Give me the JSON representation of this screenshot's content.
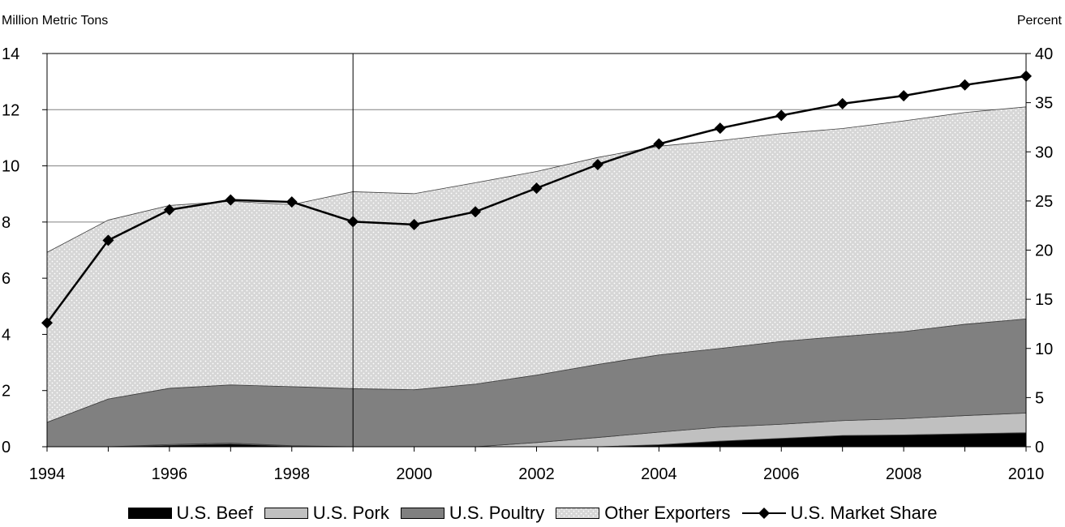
{
  "chart_data": {
    "type": "area",
    "left_axis_label": "Million Metric Tons",
    "right_axis_label": "Percent",
    "x": [
      1994,
      1995,
      1996,
      1997,
      1998,
      1999,
      2000,
      2001,
      2002,
      2003,
      2004,
      2005,
      2006,
      2007,
      2008,
      2009,
      2010
    ],
    "x_ticks": [
      "1994",
      "1996",
      "1998",
      "2000",
      "2002",
      "2004",
      "2006",
      "2008",
      "2010"
    ],
    "y_left_ticks": [
      "0",
      "2",
      "4",
      "6",
      "8",
      "10",
      "12",
      "14"
    ],
    "y_right_ticks": [
      "0",
      "5",
      "10",
      "15",
      "20",
      "25",
      "30",
      "35",
      "40"
    ],
    "ylim_left": [
      0,
      14
    ],
    "ylim_right": [
      0,
      40
    ],
    "series": [
      {
        "name": "U.S. Beef",
        "type": "area",
        "axis": "left",
        "color": "#000000",
        "values": [
          0,
          0,
          0.05,
          0.1,
          0.02,
          0,
          0,
          0,
          0,
          0,
          0.07,
          0.2,
          0.3,
          0.4,
          0.42,
          0.46,
          0.5
        ]
      },
      {
        "name": "U.S. Pork",
        "type": "area",
        "axis": "left",
        "color": "#c0c0c0",
        "values": [
          0,
          0,
          0.03,
          0.03,
          0.02,
          0,
          0,
          0,
          0.15,
          0.33,
          0.45,
          0.5,
          0.5,
          0.53,
          0.58,
          0.65,
          0.7
        ]
      },
      {
        "name": "U.S. Poultry",
        "type": "area",
        "axis": "left",
        "color": "#808080",
        "values": [
          0.87,
          1.7,
          2.0,
          2.07,
          2.1,
          2.07,
          2.03,
          2.23,
          2.4,
          2.6,
          2.75,
          2.8,
          2.95,
          3.0,
          3.1,
          3.25,
          3.35
        ]
      },
      {
        "name": "Other Exporters",
        "type": "area",
        "axis": "left",
        "color": "#dcdcdc",
        "values": [
          6.05,
          6.37,
          6.51,
          6.54,
          6.48,
          7.01,
          6.98,
          7.17,
          7.25,
          7.37,
          7.43,
          7.4,
          7.4,
          7.4,
          7.5,
          7.54,
          7.55
        ]
      },
      {
        "name": "U.S. Market Share",
        "type": "line",
        "axis": "right",
        "color": "#000000",
        "values": [
          12.6,
          21.0,
          24.1,
          25.1,
          24.9,
          22.9,
          22.6,
          23.9,
          26.3,
          28.7,
          30.8,
          32.4,
          33.7,
          34.9,
          35.7,
          36.8,
          37.7
        ]
      }
    ],
    "vertical_marker_x": 1999,
    "grid": "horizontal",
    "legend": "bottom"
  }
}
